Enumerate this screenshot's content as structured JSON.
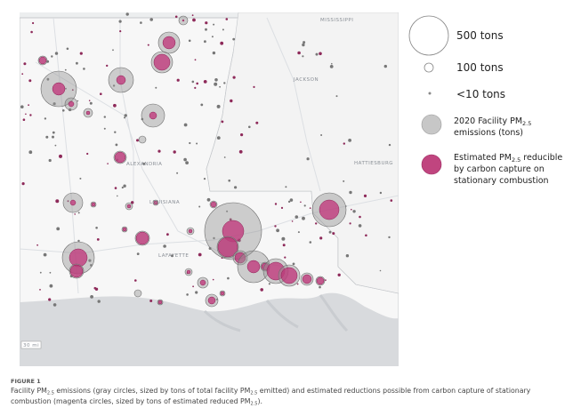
{
  "map": {
    "labels": {
      "mississippi": "MISSISSIPPI",
      "jackson": "JACKSON",
      "hattiesburg": "HATTIESBURG",
      "louisiana": "LOUISIANA",
      "alexandria": "ALEXANDRIA",
      "lafayette": "LAFAYETTE",
      "scale": "30 mi"
    }
  },
  "legend": {
    "size_500": "500 tons",
    "size_100": "100 tons",
    "size_10": "<10 tons",
    "gray": {
      "line1": "2020 Facility PM",
      "sub": "2.5",
      "line2": "emissions (tons)"
    },
    "magenta": {
      "line1a": "Estimated PM",
      "sub": "2.5",
      "line1b": " reducible",
      "line2": "by carbon capture on",
      "line3": "stationary combustion"
    }
  },
  "figure": {
    "label": "FIGURE 1",
    "caption": {
      "line1": [
        "Facility PM",
        "2.5",
        " emissions (gray circles, sized by tons of total facility PM",
        "2.5",
        " emitted) and estimated reductions possible from carbon capture of stationary"
      ],
      "line2": [
        "combustion (magenta circles, sized by tons of estimated reduced PM",
        "2.5",
        ")."
      ]
    }
  }
}
